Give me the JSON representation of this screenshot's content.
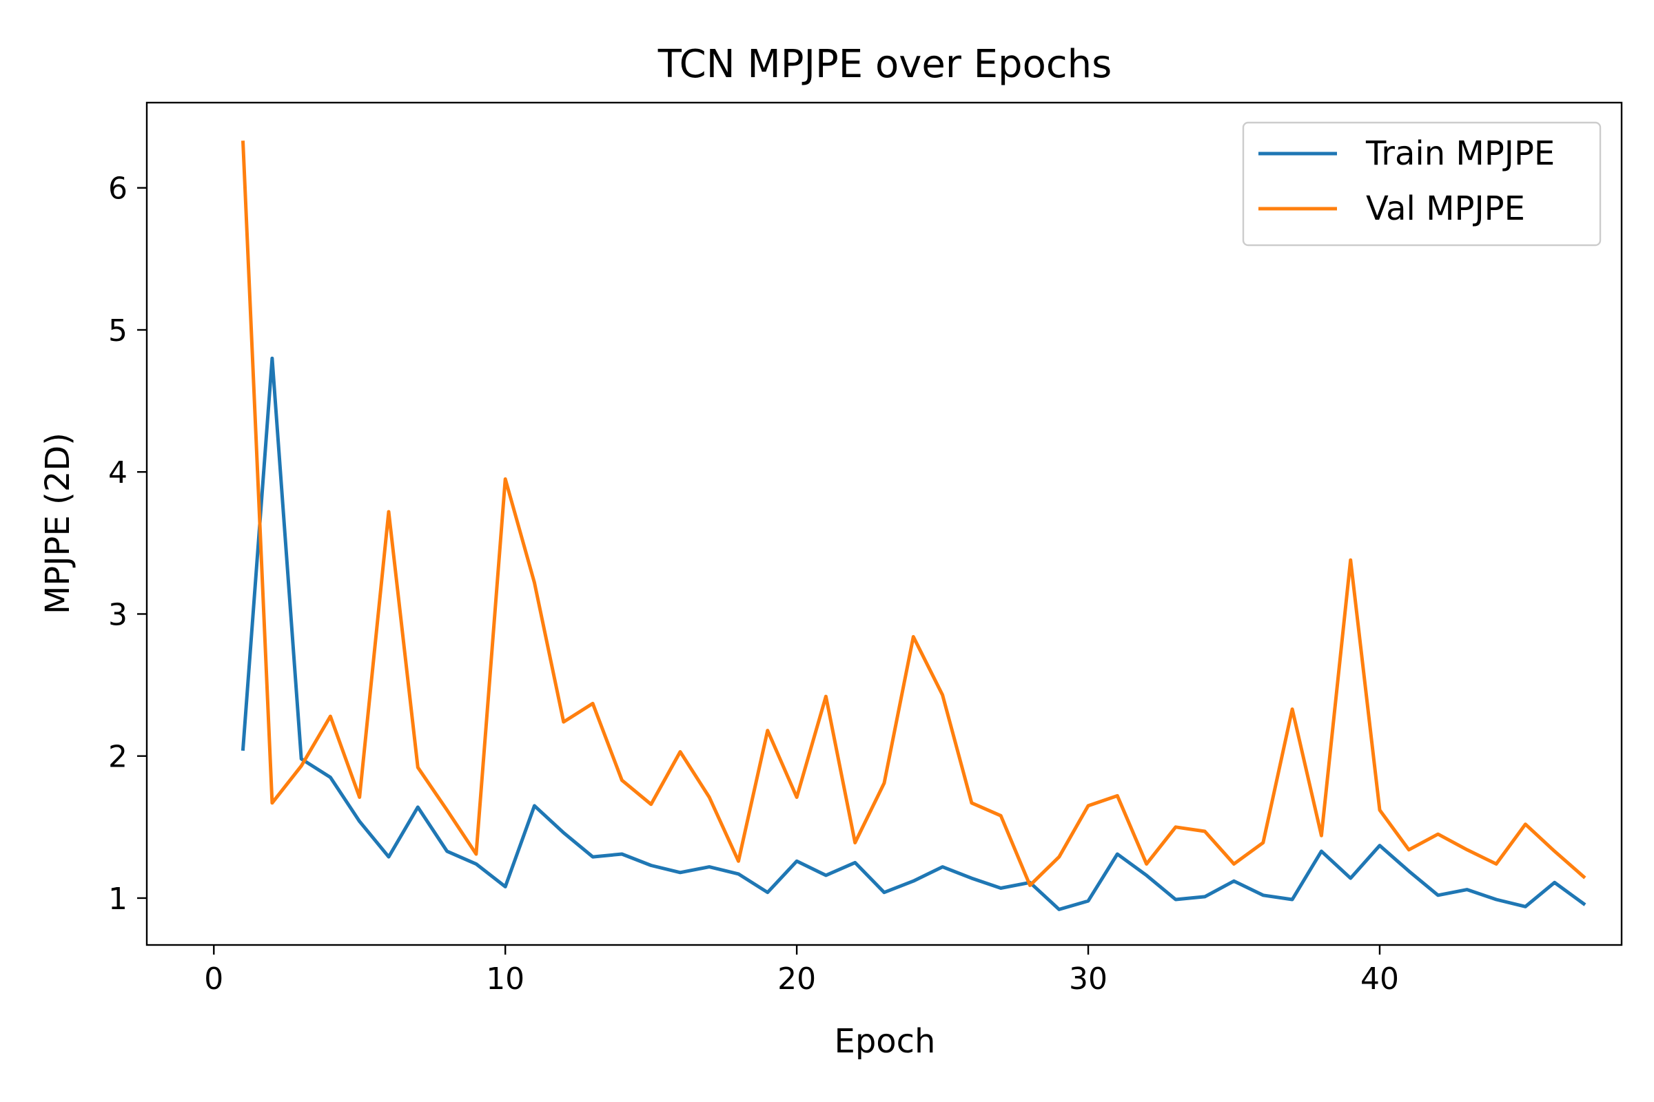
{
  "chart_data": {
    "type": "line",
    "title": "TCN MPJPE over Epochs",
    "xlabel": "Epoch",
    "ylabel": "MPJPE (2D)",
    "xlim": [
      -2.3,
      48.3
    ],
    "ylim": [
      0.67,
      6.6
    ],
    "xticks": [
      0,
      10,
      20,
      30,
      40
    ],
    "xtick_labels": [
      "0",
      "10",
      "20",
      "30",
      "40"
    ],
    "yticks": [
      1,
      2,
      3,
      4,
      5,
      6
    ],
    "ytick_labels": [
      "1",
      "2",
      "3",
      "4",
      "5",
      "6"
    ],
    "grid": false,
    "legend_position": "top-right",
    "x": [
      1,
      2,
      3,
      4,
      5,
      6,
      7,
      8,
      9,
      10,
      11,
      12,
      13,
      14,
      15,
      16,
      17,
      18,
      19,
      20,
      21,
      22,
      23,
      24,
      25,
      26,
      27,
      28,
      29,
      30,
      31,
      32,
      33,
      34,
      35,
      36,
      37,
      38,
      39,
      40,
      41,
      42,
      43,
      44,
      45,
      46,
      47
    ],
    "series": [
      {
        "name": "Train MPJPE",
        "color": "#1f77b4",
        "values": [
          2.05,
          4.8,
          1.98,
          1.85,
          1.54,
          1.29,
          1.64,
          1.33,
          1.24,
          1.08,
          1.65,
          1.46,
          1.29,
          1.31,
          1.23,
          1.18,
          1.22,
          1.17,
          1.04,
          1.26,
          1.16,
          1.25,
          1.04,
          1.12,
          1.22,
          1.14,
          1.07,
          1.11,
          0.92,
          0.98,
          1.31,
          1.16,
          0.99,
          1.01,
          1.12,
          1.02,
          0.99,
          1.33,
          1.14,
          1.37,
          1.19,
          1.02,
          1.06,
          0.99,
          0.94,
          1.11,
          0.96
        ]
      },
      {
        "name": "Val MPJPE",
        "color": "#ff7f0e",
        "values": [
          6.32,
          1.67,
          1.93,
          2.28,
          1.71,
          3.72,
          1.92,
          1.62,
          1.31,
          3.95,
          3.22,
          2.24,
          2.37,
          1.83,
          1.66,
          2.03,
          1.71,
          1.26,
          2.18,
          1.71,
          2.42,
          1.39,
          1.81,
          2.84,
          2.43,
          1.67,
          1.58,
          1.09,
          1.29,
          1.65,
          1.72,
          1.24,
          1.5,
          1.47,
          1.24,
          1.39,
          2.33,
          1.44,
          3.38,
          1.62,
          1.34,
          1.45,
          1.34,
          1.24,
          1.52,
          1.33,
          1.15
        ]
      }
    ]
  }
}
